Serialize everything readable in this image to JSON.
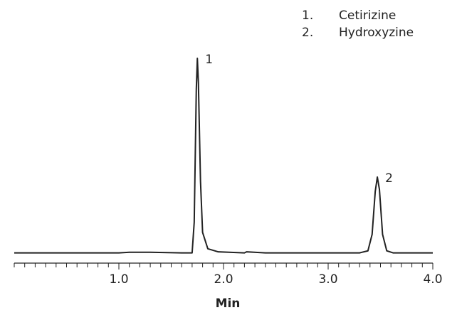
{
  "chart_data": {
    "type": "line",
    "x_label": "Min",
    "legend": [
      {
        "number": "1.",
        "name": "Cetirizine"
      },
      {
        "number": "2.",
        "name": "Hydroxyzine"
      }
    ],
    "peak_labels": [
      "1",
      "2"
    ],
    "series": [
      {
        "color": "#222222",
        "x": [
          0,
          0.5,
          1.0,
          1.1,
          1.3,
          1.6,
          1.7,
          1.72,
          1.74,
          1.75,
          1.76,
          1.78,
          1.8,
          1.85,
          1.95,
          2.2,
          2.22,
          2.4,
          3.0,
          3.3,
          3.38,
          3.42,
          3.45,
          3.47,
          3.49,
          3.52,
          3.56,
          3.62,
          3.8,
          4.0
        ],
        "values": [
          5,
          5,
          5,
          5.3,
          5.3,
          5,
          5,
          20,
          85,
          100,
          88,
          40,
          15,
          7,
          5.5,
          5,
          5.5,
          5,
          5,
          5,
          6,
          14,
          35,
          42,
          36,
          14,
          6,
          5,
          5,
          5
        ]
      }
    ],
    "xlim": [
      0,
      4.0
    ],
    "ylim": [
      0,
      100
    ],
    "xticks": [
      {
        "value": 1,
        "label": "1.0"
      },
      {
        "value": 2,
        "label": "2.0"
      },
      {
        "value": 3,
        "label": "3.0"
      },
      {
        "value": 4,
        "label": "4.0"
      }
    ],
    "xminor_ticks": [
      0,
      0.1,
      0.2,
      0.3,
      0.4,
      0.5,
      0.6,
      0.7,
      0.8,
      0.9,
      1.1,
      1.2,
      1.3,
      1.4,
      1.5,
      1.6,
      1.7,
      1.8,
      1.9,
      2.1,
      2.2,
      2.3,
      2.4,
      2.5,
      2.6,
      2.7,
      2.8,
      2.9,
      3.1,
      3.2,
      3.3,
      3.4,
      3.5,
      3.6,
      3.7,
      3.8,
      3.9
    ]
  }
}
